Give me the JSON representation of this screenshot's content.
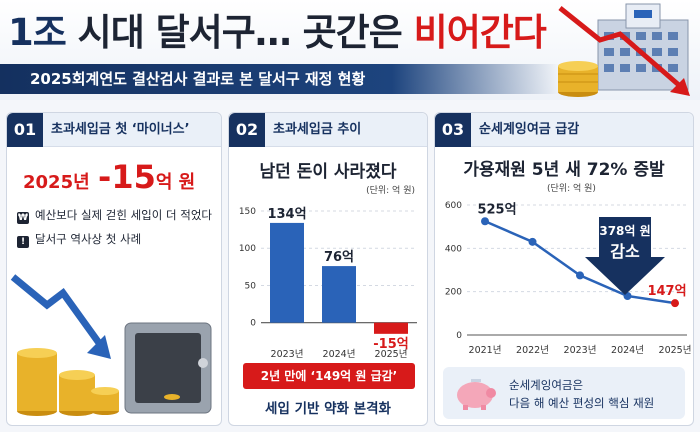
{
  "header": {
    "headline_part1": "1조",
    "headline_part2": " 시대 달서구… 곳간은 ",
    "headline_part3": "비어간다",
    "subtitle": "2025회계연도 결산검사 결과로 본 달서구 재정 현황"
  },
  "panel1": {
    "num": "01",
    "title": "초과세입금 첫 ‘마이너스’",
    "year": "2025년",
    "value": "-15",
    "unit": "억 원",
    "bullets": [
      "예산보다 실제 걷힌 세입이 더 적었다",
      "달서구 역사상 첫 사례"
    ]
  },
  "panel2": {
    "num": "02",
    "title": "초과세입금 추이",
    "subtitle": "남던 돈이 사라졌다",
    "unit_label": "(단위: 억 원)",
    "banner": "2년 만에 ‘149억 원 급감’",
    "footnote": "세입 기반 약화 본격화"
  },
  "panel3": {
    "num": "03",
    "title": "순세계잉여금 급감",
    "subtitle": "가용재원 5년 새 72% 증발",
    "unit_label": "(단위: 억 원)",
    "callout_value": "378억 원",
    "callout_label": "감소",
    "info_line1": "순세계잉여금은",
    "info_line2": "다음 해 예산 편성의 핵심 재원"
  },
  "colors": {
    "navy": "#16315f",
    "blue": "#2a63b8",
    "red": "#d71a1a"
  },
  "chart_data": [
    {
      "type": "bar",
      "categories": [
        "2023년",
        "2024년",
        "2025년"
      ],
      "values": [
        134,
        76,
        -15
      ],
      "data_labels": [
        "134억",
        "76억",
        "-15억"
      ],
      "ylim": [
        -30,
        150
      ],
      "yticks": [
        0,
        50,
        100,
        150
      ],
      "grid": true
    },
    {
      "type": "line",
      "categories": [
        "2021년",
        "2022년",
        "2023년",
        "2024년",
        "2025년"
      ],
      "values": [
        525,
        430,
        275,
        180,
        147
      ],
      "data_labels": [
        "525억",
        "",
        "",
        "",
        "147억"
      ],
      "ylim": [
        0,
        600
      ],
      "yticks": [
        0,
        200,
        400,
        600
      ],
      "grid": true
    }
  ]
}
